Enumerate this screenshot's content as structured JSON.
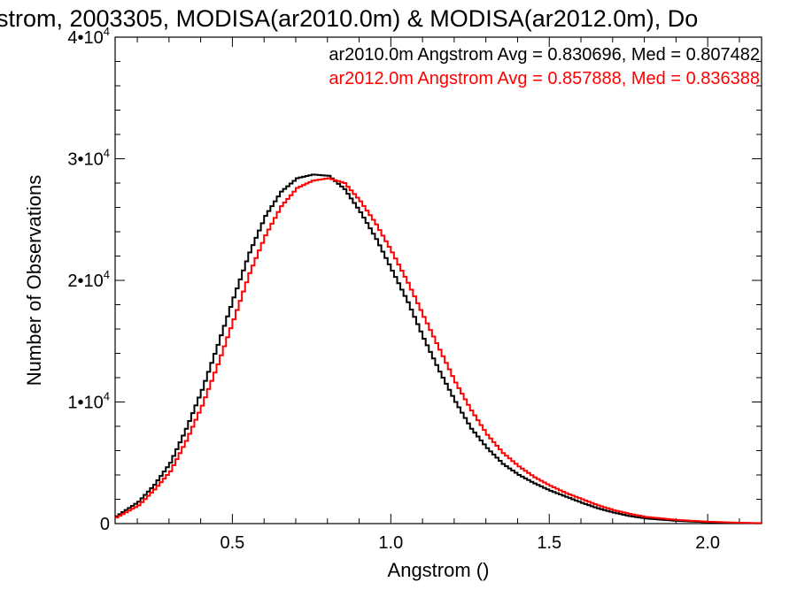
{
  "chart_data": {
    "type": "line",
    "title": "strom, 2003305, MODISA(ar2010.0m) & MODISA(ar2012.0m), Do",
    "xlabel": "Angstrom ()",
    "ylabel": "Number of Observations",
    "xlim": [
      0.13,
      2.17
    ],
    "ylim": [
      0,
      40000
    ],
    "x_ticks": [
      {
        "value": 0.5,
        "label": "0.5"
      },
      {
        "value": 1.0,
        "label": "1.0"
      },
      {
        "value": 1.5,
        "label": "1.5"
      },
      {
        "value": 2.0,
        "label": "2.0"
      }
    ],
    "y_ticks": [
      {
        "value": 0,
        "base": "0",
        "exp": ""
      },
      {
        "value": 10000,
        "base": "1•10",
        "exp": "4"
      },
      {
        "value": 20000,
        "base": "2•10",
        "exp": "4"
      },
      {
        "value": 30000,
        "base": "3•10",
        "exp": "4"
      },
      {
        "value": 40000,
        "base": "4•10",
        "exp": "4"
      }
    ],
    "grid": false,
    "legend_position": "top-right",
    "series": [
      {
        "name": "ar2010.0m",
        "legend": "ar2010.0m Angstrom Avg = 0.830696, Med = 0.807482",
        "color": "#000000",
        "x": [
          0.13,
          0.2,
          0.25,
          0.3,
          0.35,
          0.4,
          0.45,
          0.5,
          0.55,
          0.6,
          0.65,
          0.7,
          0.75,
          0.8,
          0.85,
          0.9,
          0.95,
          1.0,
          1.05,
          1.1,
          1.15,
          1.2,
          1.25,
          1.3,
          1.35,
          1.4,
          1.45,
          1.5,
          1.55,
          1.6,
          1.65,
          1.7,
          1.75,
          1.8,
          1.9,
          2.0,
          2.1,
          2.17
        ],
        "y": [
          600,
          1800,
          3200,
          5000,
          7800,
          11000,
          14700,
          18600,
          22300,
          25300,
          27300,
          28400,
          28700,
          28600,
          27500,
          25600,
          23400,
          20800,
          18200,
          15200,
          12500,
          10000,
          7800,
          6200,
          4900,
          4000,
          3300,
          2700,
          2200,
          1700,
          1250,
          900,
          620,
          420,
          220,
          110,
          50,
          20
        ]
      },
      {
        "name": "ar2012.0m",
        "legend": "ar2012.0m Angstrom Avg = 0.857888, Med = 0.836388",
        "color": "#ff0000",
        "x": [
          0.13,
          0.2,
          0.25,
          0.3,
          0.35,
          0.4,
          0.45,
          0.5,
          0.55,
          0.6,
          0.65,
          0.7,
          0.75,
          0.8,
          0.85,
          0.9,
          0.95,
          1.0,
          1.05,
          1.1,
          1.15,
          1.2,
          1.25,
          1.3,
          1.35,
          1.4,
          1.45,
          1.5,
          1.55,
          1.6,
          1.65,
          1.7,
          1.75,
          1.8,
          1.9,
          2.0,
          2.1,
          2.17
        ],
        "y": [
          500,
          1500,
          2800,
          4300,
          6800,
          9700,
          13100,
          16800,
          20600,
          23700,
          26100,
          27600,
          28200,
          28400,
          28000,
          26500,
          24600,
          22300,
          19800,
          17000,
          14300,
          11600,
          9300,
          7300,
          5800,
          4700,
          3800,
          3100,
          2500,
          2000,
          1500,
          1100,
          800,
          550,
          300,
          150,
          70,
          30
        ]
      }
    ]
  }
}
